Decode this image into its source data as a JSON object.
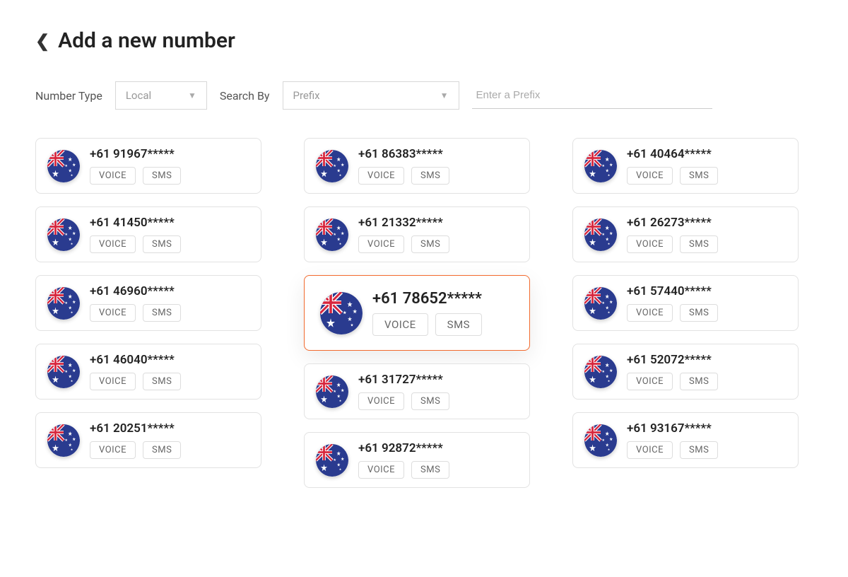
{
  "header": {
    "title": "Add a new number"
  },
  "filters": {
    "number_type_label": "Number Type",
    "number_type_value": "Local",
    "search_by_label": "Search By",
    "search_by_value": "Prefix",
    "prefix_placeholder": "Enter a Prefix"
  },
  "capabilities": {
    "voice": "VOICE",
    "sms": "SMS"
  },
  "flag": {
    "country": "Australia",
    "bg_color": "#2a3b8f",
    "accent_color": "#d7263d",
    "star_color": "#ffffff"
  },
  "styles": {
    "selected_border": "#f26a2e",
    "card_border": "#e2e2e2",
    "text_primary": "#222222",
    "text_muted": "#999999"
  },
  "columns": [
    [
      {
        "number": "+61 91967*****",
        "selected": false
      },
      {
        "number": "+61 41450*****",
        "selected": false
      },
      {
        "number": "+61 46960*****",
        "selected": false
      },
      {
        "number": "+61 46040*****",
        "selected": false
      },
      {
        "number": "+61 20251*****",
        "selected": false
      }
    ],
    [
      {
        "number": "+61 86383*****",
        "selected": false
      },
      {
        "number": "+61 21332*****",
        "selected": false
      },
      {
        "number": "+61 78652*****",
        "selected": true
      },
      {
        "number": "+61 31727*****",
        "selected": false
      },
      {
        "number": "+61 92872*****",
        "selected": false
      }
    ],
    [
      {
        "number": "+61 40464*****",
        "selected": false
      },
      {
        "number": "+61 26273*****",
        "selected": false
      },
      {
        "number": "+61 57440*****",
        "selected": false
      },
      {
        "number": "+61 52072*****",
        "selected": false
      },
      {
        "number": "+61 93167*****",
        "selected": false
      }
    ]
  ]
}
